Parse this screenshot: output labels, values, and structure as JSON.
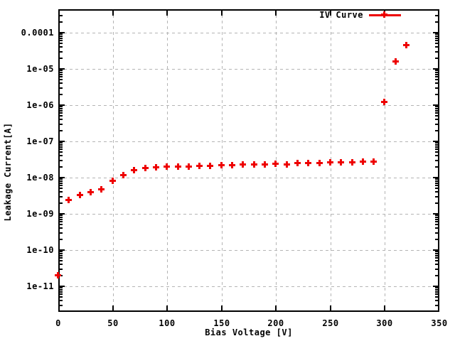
{
  "chart_data": {
    "type": "scatter",
    "title": "",
    "xlabel": "Bias Voltage [V]",
    "ylabel": "Leakage Current[A]",
    "legend": [
      {
        "label": "IV Curve",
        "marker": "plus",
        "color": "#ee0000"
      }
    ],
    "legend_position": "top-right-inside",
    "grid": true,
    "x_axis": {
      "min": 0,
      "max": 350,
      "major_tick_step": 50,
      "tick_labels": [
        "0",
        "50",
        "100",
        "150",
        "200",
        "250",
        "300",
        "350"
      ]
    },
    "y_axis": {
      "scale": "log",
      "tick_labels": [
        "0.0001",
        "1e-05",
        "1e-06",
        "1e-07",
        "1e-08",
        "1e-09",
        "1e-10",
        "1e-11"
      ],
      "tick_exponents": [
        -4,
        -5,
        -6,
        -7,
        -8,
        -9,
        -10,
        -11
      ],
      "minor_ticks": "log-decade"
    },
    "series": [
      {
        "name": "IV Curve",
        "x": [
          0,
          10,
          20,
          30,
          40,
          50,
          60,
          70,
          80,
          90,
          100,
          110,
          120,
          130,
          140,
          150,
          160,
          170,
          180,
          190,
          200,
          210,
          220,
          230,
          240,
          250,
          260,
          270,
          280,
          290,
          300,
          310,
          320
        ],
        "y": [
          2e-11,
          2.4e-09,
          3.2e-09,
          3.8e-09,
          4.7e-09,
          8e-09,
          1.15e-08,
          1.6e-08,
          1.8e-08,
          1.9e-08,
          2e-08,
          2e-08,
          2e-08,
          2.1e-08,
          2.1e-08,
          2.2e-08,
          2.2e-08,
          2.25e-08,
          2.25e-08,
          2.3e-08,
          2.4e-08,
          2.3e-08,
          2.5e-08,
          2.5e-08,
          2.5e-08,
          2.6e-08,
          2.6e-08,
          2.6e-08,
          2.7e-08,
          2.7e-08,
          1.2e-06,
          1.6e-05,
          4.5e-05
        ]
      }
    ],
    "colors": {
      "marker": "#ee0000",
      "grid": "#b4b4b4",
      "axis": "#000000",
      "background": "#ffffff"
    }
  }
}
